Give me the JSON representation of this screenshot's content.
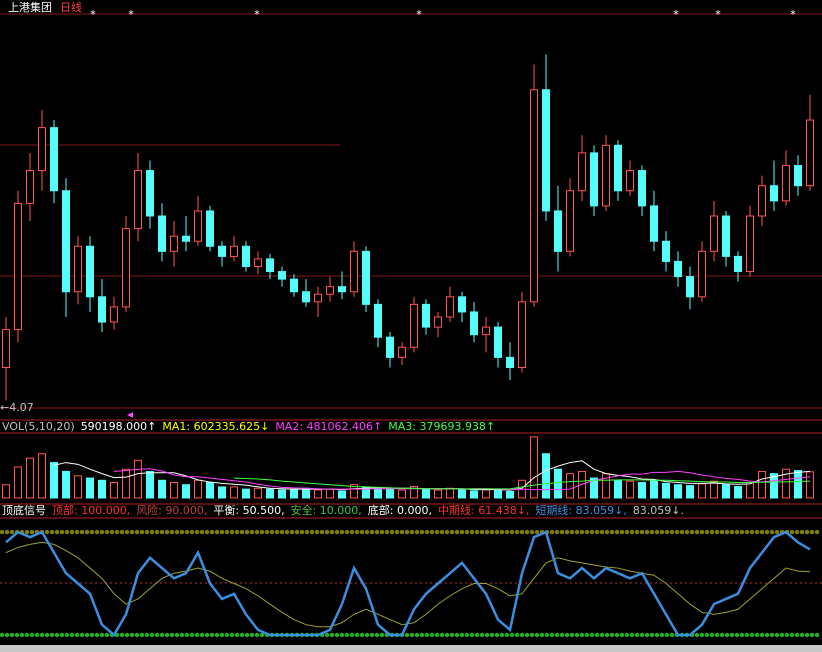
{
  "chart_data": [
    {
      "type": "candlestick",
      "title": "上港集团",
      "title2": "日线",
      "title_color": "#ffffff",
      "title2_color": "#ff4040",
      "low_label": "←4.07",
      "low_label_color": "#c0c0c0",
      "up_color": "#ff5555",
      "down_color": "#54fcfc",
      "ylim": [
        4.0,
        5.6
      ],
      "open": [
        4.2,
        4.35,
        4.85,
        4.98,
        5.15,
        4.9,
        4.5,
        4.68,
        4.48,
        4.38,
        4.44,
        4.75,
        4.98,
        4.8,
        4.66,
        4.72,
        4.7,
        4.82,
        4.68,
        4.64,
        4.68,
        4.6,
        4.63,
        4.58,
        4.55,
        4.5,
        4.46,
        4.49,
        4.52,
        4.5,
        4.66,
        4.45,
        4.32,
        4.24,
        4.28,
        4.45,
        4.36,
        4.4,
        4.48,
        4.42,
        4.33,
        4.36,
        4.24,
        4.2,
        4.46,
        5.3,
        4.82,
        4.66,
        4.9,
        5.05,
        4.84,
        5.08,
        4.9,
        4.98,
        4.84,
        4.7,
        4.62,
        4.56,
        4.48,
        4.66,
        4.8,
        4.64,
        4.58,
        4.8,
        4.92,
        4.86,
        5.0,
        4.92
      ],
      "high": [
        4.4,
        4.9,
        5.05,
        5.22,
        5.18,
        4.95,
        4.72,
        4.72,
        4.55,
        4.48,
        4.8,
        5.05,
        5.02,
        4.85,
        4.78,
        4.8,
        4.88,
        4.84,
        4.7,
        4.72,
        4.7,
        4.66,
        4.65,
        4.6,
        4.57,
        4.55,
        4.52,
        4.56,
        4.58,
        4.7,
        4.68,
        4.47,
        4.34,
        4.3,
        4.48,
        4.47,
        4.42,
        4.52,
        4.5,
        4.46,
        4.4,
        4.38,
        4.3,
        4.5,
        5.4,
        5.44,
        4.92,
        4.95,
        5.12,
        5.08,
        5.12,
        5.1,
        5.02,
        5.0,
        4.9,
        4.74,
        4.66,
        4.6,
        4.7,
        4.86,
        4.82,
        4.66,
        4.84,
        4.96,
        5.02,
        5.06,
        5.04,
        5.28
      ],
      "low": [
        4.07,
        4.3,
        4.78,
        4.9,
        4.85,
        4.4,
        4.45,
        4.42,
        4.34,
        4.35,
        4.42,
        4.7,
        4.75,
        4.62,
        4.6,
        4.66,
        4.68,
        4.66,
        4.6,
        4.62,
        4.58,
        4.57,
        4.55,
        4.52,
        4.48,
        4.44,
        4.4,
        4.46,
        4.47,
        4.48,
        4.42,
        4.28,
        4.2,
        4.21,
        4.26,
        4.33,
        4.32,
        4.38,
        4.38,
        4.3,
        4.26,
        4.2,
        4.15,
        4.18,
        4.44,
        4.78,
        4.58,
        4.64,
        4.86,
        4.8,
        4.82,
        4.86,
        4.88,
        4.8,
        4.66,
        4.58,
        4.52,
        4.43,
        4.46,
        4.62,
        4.6,
        4.54,
        4.56,
        4.76,
        4.82,
        4.84,
        4.88,
        4.9
      ],
      "close": [
        4.35,
        4.85,
        4.98,
        5.15,
        4.9,
        4.5,
        4.68,
        4.48,
        4.38,
        4.44,
        4.75,
        4.98,
        4.8,
        4.66,
        4.72,
        4.7,
        4.82,
        4.68,
        4.64,
        4.68,
        4.6,
        4.63,
        4.58,
        4.55,
        4.5,
        4.46,
        4.49,
        4.52,
        4.5,
        4.66,
        4.45,
        4.32,
        4.24,
        4.28,
        4.45,
        4.36,
        4.4,
        4.48,
        4.42,
        4.33,
        4.36,
        4.24,
        4.2,
        4.46,
        5.3,
        4.82,
        4.66,
        4.9,
        5.05,
        4.84,
        5.08,
        4.9,
        4.98,
        4.84,
        4.7,
        4.62,
        4.56,
        4.48,
        4.66,
        4.8,
        4.64,
        4.58,
        4.8,
        4.92,
        4.86,
        5.0,
        4.92,
        5.18
      ]
    },
    {
      "type": "volume",
      "header": [
        {
          "text": "VOL(5,10,20)",
          "color": "#c0c0c0"
        },
        {
          "text": "590198.000↑",
          "color": "#ffffff"
        },
        {
          "text": "MA1: 602335.625↓",
          "color": "#ffff00"
        },
        {
          "text": "MA2: 481062.406↑",
          "color": "#ff40ff"
        },
        {
          "text": "MA3: 379693.938↑",
          "color": "#40ff40"
        }
      ],
      "ylim": [
        0,
        1400000
      ],
      "values": [
        300000,
        700000,
        900000,
        1000000,
        800000,
        600000,
        500000,
        450000,
        400000,
        350000,
        650000,
        850000,
        600000,
        400000,
        350000,
        300000,
        400000,
        350000,
        250000,
        250000,
        200000,
        220000,
        200000,
        180000,
        200000,
        220000,
        180000,
        200000,
        160000,
        300000,
        250000,
        220000,
        200000,
        180000,
        260000,
        200000,
        180000,
        220000,
        200000,
        160000,
        180000,
        200000,
        150000,
        400000,
        1380000,
        1000000,
        650000,
        550000,
        600000,
        450000,
        550000,
        400000,
        380000,
        350000,
        400000,
        330000,
        300000,
        280000,
        320000,
        380000,
        300000,
        260000,
        350000,
        600000,
        550000,
        650000,
        620000,
        590198
      ],
      "series": [
        {
          "name": "MA1",
          "color": "#ffffff",
          "values": [
            null,
            null,
            null,
            null,
            740000,
            800000,
            760000,
            650000,
            550000,
            460000,
            470000,
            550000,
            570000,
            570000,
            570000,
            500000,
            410000,
            360000,
            330000,
            310000,
            290000,
            250000,
            220000,
            210000,
            200000,
            200000,
            200000,
            200000,
            190000,
            210000,
            220000,
            230000,
            230000,
            220000,
            220000,
            210000,
            210000,
            210000,
            210000,
            190000,
            190000,
            190000,
            180000,
            220000,
            460000,
            620000,
            720000,
            800000,
            840000,
            650000,
            550000,
            510000,
            480000,
            430000,
            420000,
            370000,
            350000,
            330000,
            330000,
            340000,
            320000,
            310000,
            320000,
            430000,
            480000,
            540000,
            580000,
            602335.625
          ]
        },
        {
          "name": "MA2",
          "color": "#ff40ff",
          "values": [
            null,
            null,
            null,
            null,
            null,
            null,
            null,
            null,
            null,
            600000,
            620000,
            650000,
            660000,
            610000,
            520000,
            480000,
            480000,
            450000,
            420000,
            390000,
            360000,
            310000,
            270000,
            240000,
            230000,
            220000,
            210000,
            200000,
            200000,
            200000,
            200000,
            210000,
            210000,
            210000,
            210000,
            210000,
            210000,
            210000,
            200000,
            210000,
            210000,
            200000,
            190000,
            200000,
            190000,
            190000,
            190000,
            200000,
            310000,
            400000,
            450000,
            500000,
            540000,
            540000,
            580000,
            580000,
            600000,
            570000,
            520000,
            480000,
            440000,
            420000,
            380000,
            360000,
            390000,
            420000,
            450000,
            481062.406
          ]
        },
        {
          "name": "MA3",
          "color": "#40ff40",
          "values": [
            null,
            null,
            null,
            null,
            null,
            null,
            null,
            null,
            null,
            null,
            null,
            null,
            null,
            null,
            null,
            null,
            null,
            null,
            null,
            450000,
            440000,
            430000,
            410000,
            380000,
            360000,
            340000,
            320000,
            300000,
            280000,
            260000,
            250000,
            240000,
            230000,
            220000,
            215000,
            210000,
            205000,
            205000,
            205000,
            205000,
            205000,
            205000,
            205000,
            250000,
            290000,
            320000,
            350000,
            370000,
            380000,
            400000,
            400000,
            410000,
            410000,
            410000,
            400000,
            400000,
            390000,
            380000,
            370000,
            360000,
            360000,
            350000,
            350000,
            355000,
            360000,
            365000,
            372000,
            379693.938
          ]
        }
      ]
    },
    {
      "type": "line",
      "header": [
        {
          "text": "顶底信号",
          "color": "#ffffff"
        },
        {
          "text": "顶部: 100.000,",
          "color": "#ff3030"
        },
        {
          "text": "风险: 90.000,",
          "color": "#c04040"
        },
        {
          "text": "平衡: 50.500,",
          "color": "#ffffff"
        },
        {
          "text": "安全: 10.000,",
          "color": "#40c040"
        },
        {
          "text": "底部: 0.000,",
          "color": "#ffffff"
        },
        {
          "text": "中期线: 61.438↓,",
          "color": "#ff3030"
        },
        {
          "text": "短期线: 83.059↓,",
          "color": "#3a8fe0"
        },
        {
          "text": "83.059↓.",
          "color": "#c0c0c0"
        }
      ],
      "ylim": [
        -14,
        121
      ],
      "levels": [
        {
          "value": 100,
          "color": "#808000",
          "style": "dots"
        },
        {
          "value": 50.5,
          "color": "#c03030",
          "style": "dotted"
        },
        {
          "value": 0,
          "color": "#20b020",
          "style": "dots"
        }
      ],
      "series": [
        {
          "name": "中期线",
          "color": "#a0a030",
          "width": 1,
          "values": [
            80,
            85,
            88,
            90,
            88,
            82,
            75,
            65,
            55,
            40,
            30,
            35,
            45,
            55,
            60,
            62,
            65,
            62,
            55,
            50,
            45,
            38,
            30,
            22,
            15,
            10,
            8,
            8,
            12,
            20,
            25,
            20,
            15,
            10,
            12,
            20,
            30,
            38,
            45,
            50,
            50,
            45,
            38,
            40,
            55,
            70,
            75,
            72,
            70,
            68,
            66,
            65,
            62,
            60,
            58,
            50,
            40,
            30,
            22,
            20,
            22,
            25,
            35,
            45,
            55,
            65,
            62,
            61.438
          ]
        },
        {
          "name": "短期线",
          "color": "#3a8fe0",
          "width": 2.5,
          "values": [
            90,
            100,
            95,
            100,
            80,
            60,
            50,
            40,
            10,
            0,
            20,
            60,
            75,
            65,
            55,
            60,
            80,
            50,
            35,
            40,
            20,
            5,
            0,
            0,
            0,
            0,
            0,
            5,
            30,
            65,
            45,
            10,
            0,
            0,
            25,
            40,
            50,
            60,
            70,
            55,
            40,
            15,
            5,
            60,
            95,
            100,
            60,
            55,
            65,
            55,
            65,
            60,
            55,
            60,
            40,
            20,
            0,
            0,
            10,
            30,
            35,
            40,
            65,
            80,
            95,
            100,
            90,
            83.059
          ]
        }
      ]
    }
  ]
}
